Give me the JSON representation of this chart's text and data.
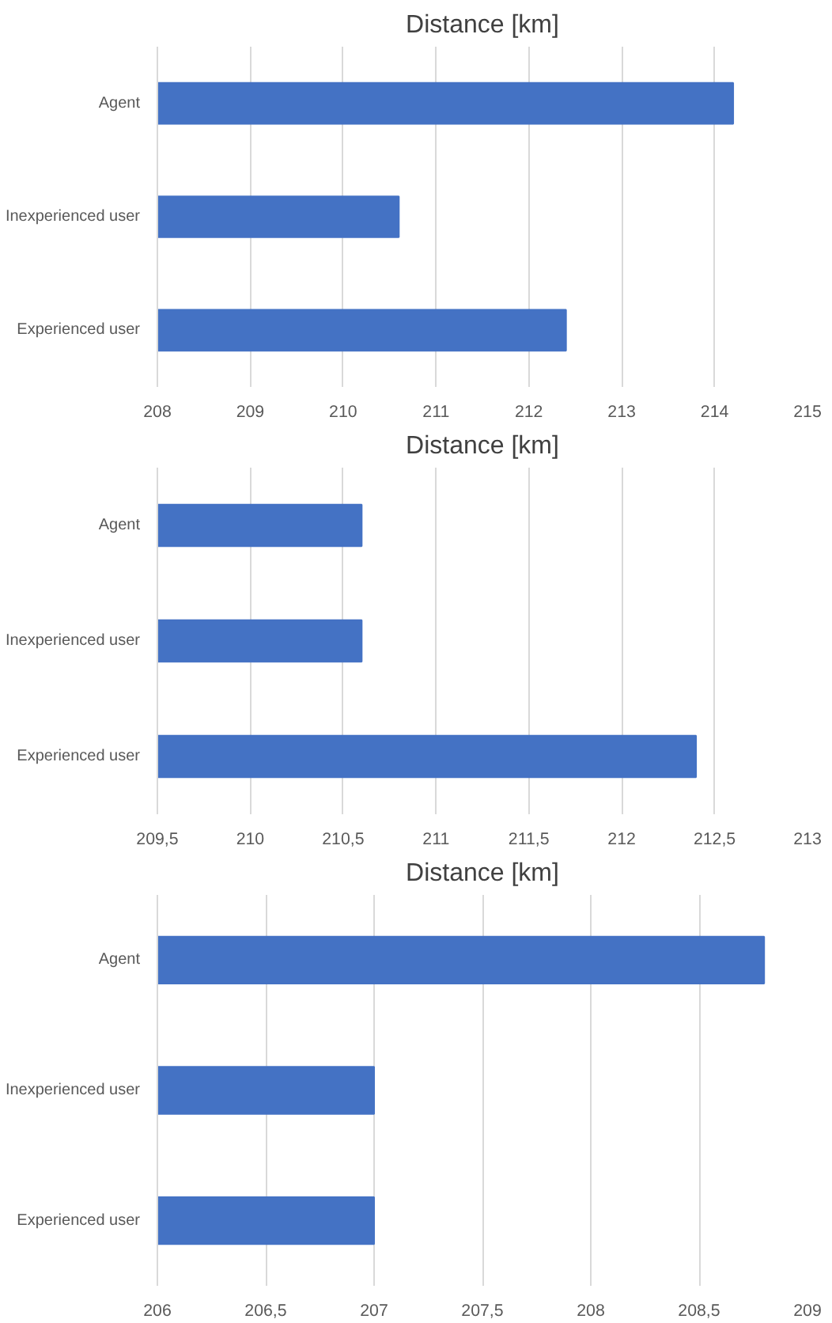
{
  "chart_data": [
    {
      "type": "bar",
      "orientation": "horizontal",
      "title": "Distance [km]",
      "categories": [
        "Agent",
        "Inexperienced user",
        "Experienced user"
      ],
      "values": [
        214.2,
        210.6,
        212.4
      ],
      "color": "#4472c4",
      "xlim": [
        208,
        215
      ],
      "xticks": [
        208,
        209,
        210,
        211,
        212,
        213,
        214,
        215
      ],
      "grid": "x"
    },
    {
      "type": "bar",
      "orientation": "horizontal",
      "title": "Distance [km]",
      "categories": [
        "Agent",
        "Inexperienced user",
        "Experienced user"
      ],
      "values": [
        210.6,
        210.6,
        212.4
      ],
      "color": "#4472c4",
      "xlim": [
        209.5,
        213
      ],
      "xticks": [
        {
          "value": 209.5,
          "label": "209,5"
        },
        210,
        {
          "value": 210.5,
          "label": "210,5"
        },
        211,
        {
          "value": 211.5,
          "label": "211,5"
        },
        212,
        {
          "value": 212.5,
          "label": "212,5"
        },
        213
      ],
      "grid": "x"
    },
    {
      "type": "bar",
      "orientation": "horizontal",
      "title": "Distance [km]",
      "categories": [
        "Agent",
        "Inexperienced user",
        "Experienced user"
      ],
      "values": [
        208.8,
        207.0,
        207.0
      ],
      "color": "#4472c4",
      "xlim": [
        206,
        209
      ],
      "xticks": [
        206,
        {
          "value": 206.5,
          "label": "206,5"
        },
        207,
        {
          "value": 207.5,
          "label": "207,5"
        },
        208,
        {
          "value": 208.5,
          "label": "208,5"
        },
        209
      ],
      "grid": "x"
    }
  ]
}
